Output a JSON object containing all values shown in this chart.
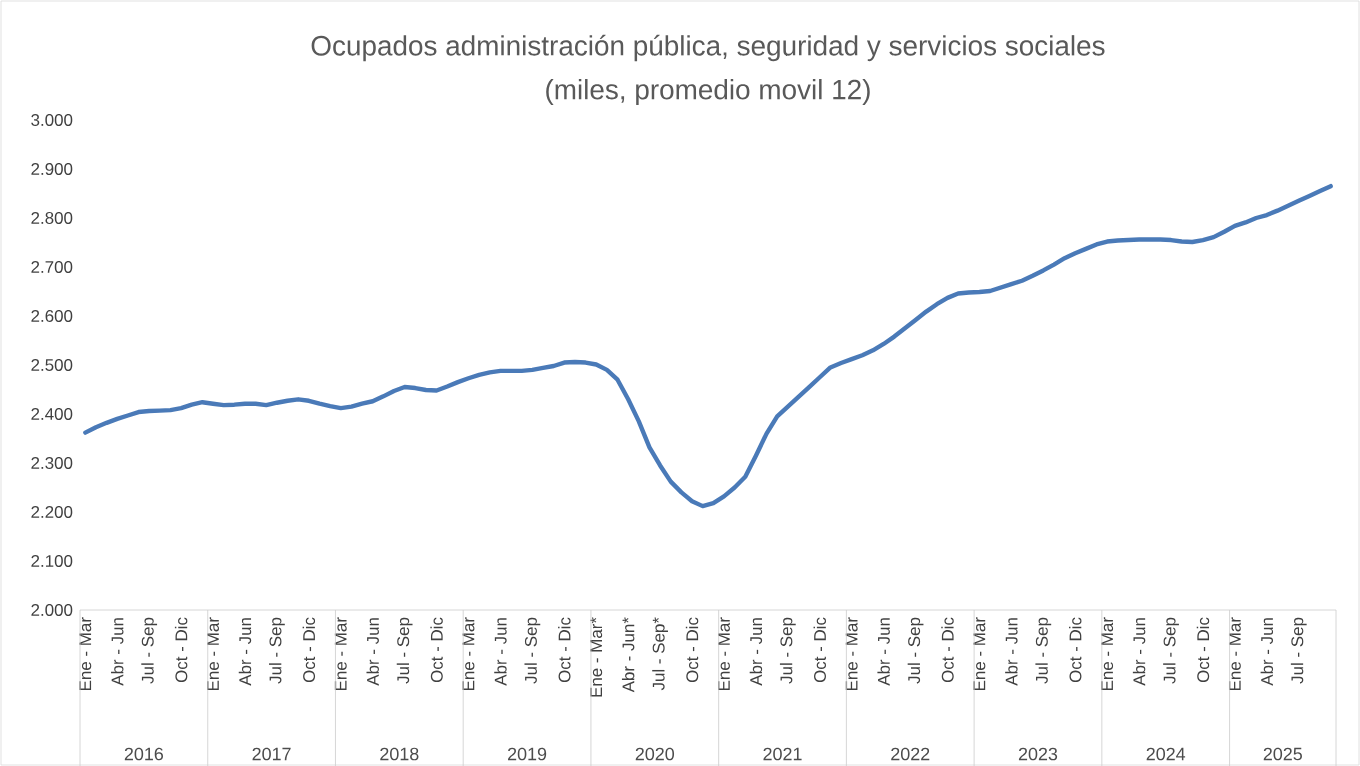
{
  "chart_data": {
    "type": "line",
    "title": "Ocupados administración pública, seguridad y servicios sociales",
    "subtitle": "(miles, promedio movil 12)",
    "categories": [
      "Ene - Mar",
      null,
      null,
      "Abr - Jun",
      null,
      null,
      "Jul - Sep",
      null,
      null,
      "Oct - Dic",
      null,
      null,
      "Ene - Mar",
      null,
      null,
      "Abr - Jun",
      null,
      null,
      "Jul - Sep",
      null,
      null,
      "Oct - Dic",
      null,
      null,
      "Ene - Mar",
      null,
      null,
      "Abr - Jun",
      null,
      null,
      "Jul - Sep",
      null,
      null,
      "Oct - Dic",
      null,
      null,
      "Ene - Mar",
      null,
      null,
      "Abr - Jun",
      null,
      null,
      "Jul - Sep",
      null,
      null,
      "Oct - Dic",
      null,
      null,
      "Ene - Mar*",
      null,
      null,
      "Abr - Jun*",
      null,
      null,
      "Jul - Sep*",
      null,
      null,
      "Oct - Dic",
      null,
      null,
      "Ene - Mar",
      null,
      null,
      "Abr - Jun",
      null,
      null,
      "Jul - Sep",
      null,
      null,
      "Oct - Dic",
      null,
      null,
      "Ene - Mar",
      null,
      null,
      "Abr - Jun",
      null,
      null,
      "Jul - Sep",
      null,
      null,
      "Oct - Dic",
      null,
      null,
      "Ene - Mar",
      null,
      null,
      "Abr - Jun",
      null,
      null,
      "Jul - Sep",
      null,
      null,
      "Oct - Dic",
      null,
      null,
      "Ene - Mar",
      null,
      null,
      "Abr - Jun",
      null,
      null,
      "Jul - Sep",
      null,
      null,
      "Oct - Dic",
      null,
      null,
      "Ene - Mar",
      null,
      null,
      "Abr - Jun",
      null,
      null,
      "Jul - Sep",
      null,
      null,
      null
    ],
    "series": [
      {
        "color": "#4a7ab8",
        "values": [
          2362,
          2373,
          2382,
          2390,
          2397,
          2404,
          2406,
          2407,
          2408,
          2412,
          2419,
          2424,
          2421,
          2418,
          2419,
          2421,
          2421,
          2418,
          2423,
          2427,
          2430,
          2427,
          2421,
          2416,
          2412,
          2415,
          2421,
          2426,
          2436,
          2447,
          2455,
          2453,
          2449,
          2448,
          2456,
          2465,
          2473,
          2480,
          2485,
          2488,
          2488,
          2488,
          2490,
          2494,
          2498,
          2505,
          2506,
          2505,
          2501,
          2490,
          2470,
          2430,
          2385,
          2332,
          2295,
          2262,
          2240,
          2222,
          2212,
          2218,
          2232,
          2250,
          2272,
          2315,
          2360,
          2395,
          2415,
          2435,
          2455,
          2475,
          2495,
          2504,
          2512,
          2520,
          2530,
          2543,
          2558,
          2575,
          2592,
          2609,
          2624,
          2637,
          2646,
          2648,
          2649,
          2651,
          2658,
          2665,
          2672,
          2682,
          2693,
          2705,
          2718,
          2728,
          2737,
          2746,
          2752,
          2754,
          2755,
          2756,
          2756,
          2756,
          2755,
          2752,
          2751,
          2755,
          2761,
          2772,
          2784,
          2791,
          2800,
          2806,
          2815,
          2825,
          2835,
          2845,
          2855,
          2865
        ]
      }
    ],
    "ylim": [
      2000,
      3000
    ],
    "yticks": [
      {
        "value": 2000,
        "label": "2.000"
      },
      {
        "value": 2100,
        "label": "2.100"
      },
      {
        "value": 2200,
        "label": "2.200"
      },
      {
        "value": 2300,
        "label": "2.300"
      },
      {
        "value": 2400,
        "label": "2.400"
      },
      {
        "value": 2500,
        "label": "2.500"
      },
      {
        "value": 2600,
        "label": "2.600"
      },
      {
        "value": 2700,
        "label": "2.700"
      },
      {
        "value": 2800,
        "label": "2.800"
      },
      {
        "value": 2900,
        "label": "2.900"
      },
      {
        "value": 3000,
        "label": "3.000"
      }
    ],
    "marker": "none",
    "line_style": "solid",
    "annotations": [
      "2016",
      "2017",
      "2018",
      "2019",
      "2020",
      "2021",
      "2022",
      "2023",
      "2024",
      "2025"
    ]
  }
}
